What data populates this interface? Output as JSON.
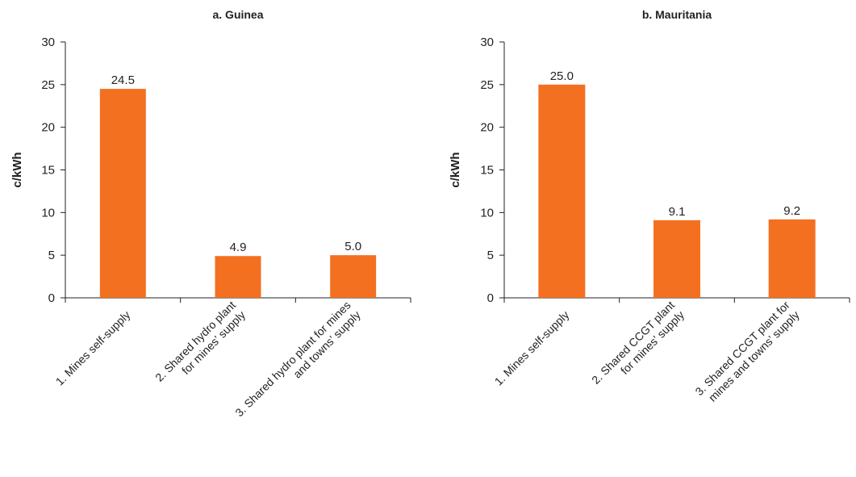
{
  "colors": {
    "bar": "#f37021",
    "axis": "#231f20",
    "text": "#231f20"
  },
  "chart_data": [
    {
      "type": "bar",
      "title": "a. Guinea",
      "xlabel": "",
      "ylabel": "c/kWh",
      "ylim": [
        0,
        30
      ],
      "yticks": [
        "0",
        "5",
        "10",
        "15",
        "20",
        "25",
        "30"
      ],
      "grid": false,
      "categories": [
        [
          "1. Mines self-supply"
        ],
        [
          "2. Shared hydro plant",
          "for mines’ supply"
        ],
        [
          "3. Shared hydro plant for mines",
          "and towns’ supply"
        ]
      ],
      "values": [
        24.5,
        4.9,
        5.0
      ],
      "data_labels": [
        "24.5",
        "4.9",
        "5.0"
      ]
    },
    {
      "type": "bar",
      "title": "b. Mauritania",
      "xlabel": "",
      "ylabel": "c/kWh",
      "ylim": [
        0,
        30
      ],
      "yticks": [
        "0",
        "5",
        "10",
        "15",
        "20",
        "25",
        "30"
      ],
      "grid": false,
      "categories": [
        [
          "1. Mines self-supply"
        ],
        [
          "2. Shared CCGT plant",
          "for mines’ supply"
        ],
        [
          "3. Shared CCGT plant for",
          "mines and towns’ supply"
        ]
      ],
      "values": [
        25.0,
        9.1,
        9.2
      ],
      "data_labels": [
        "25.0",
        "9.1",
        "9.2"
      ]
    }
  ]
}
